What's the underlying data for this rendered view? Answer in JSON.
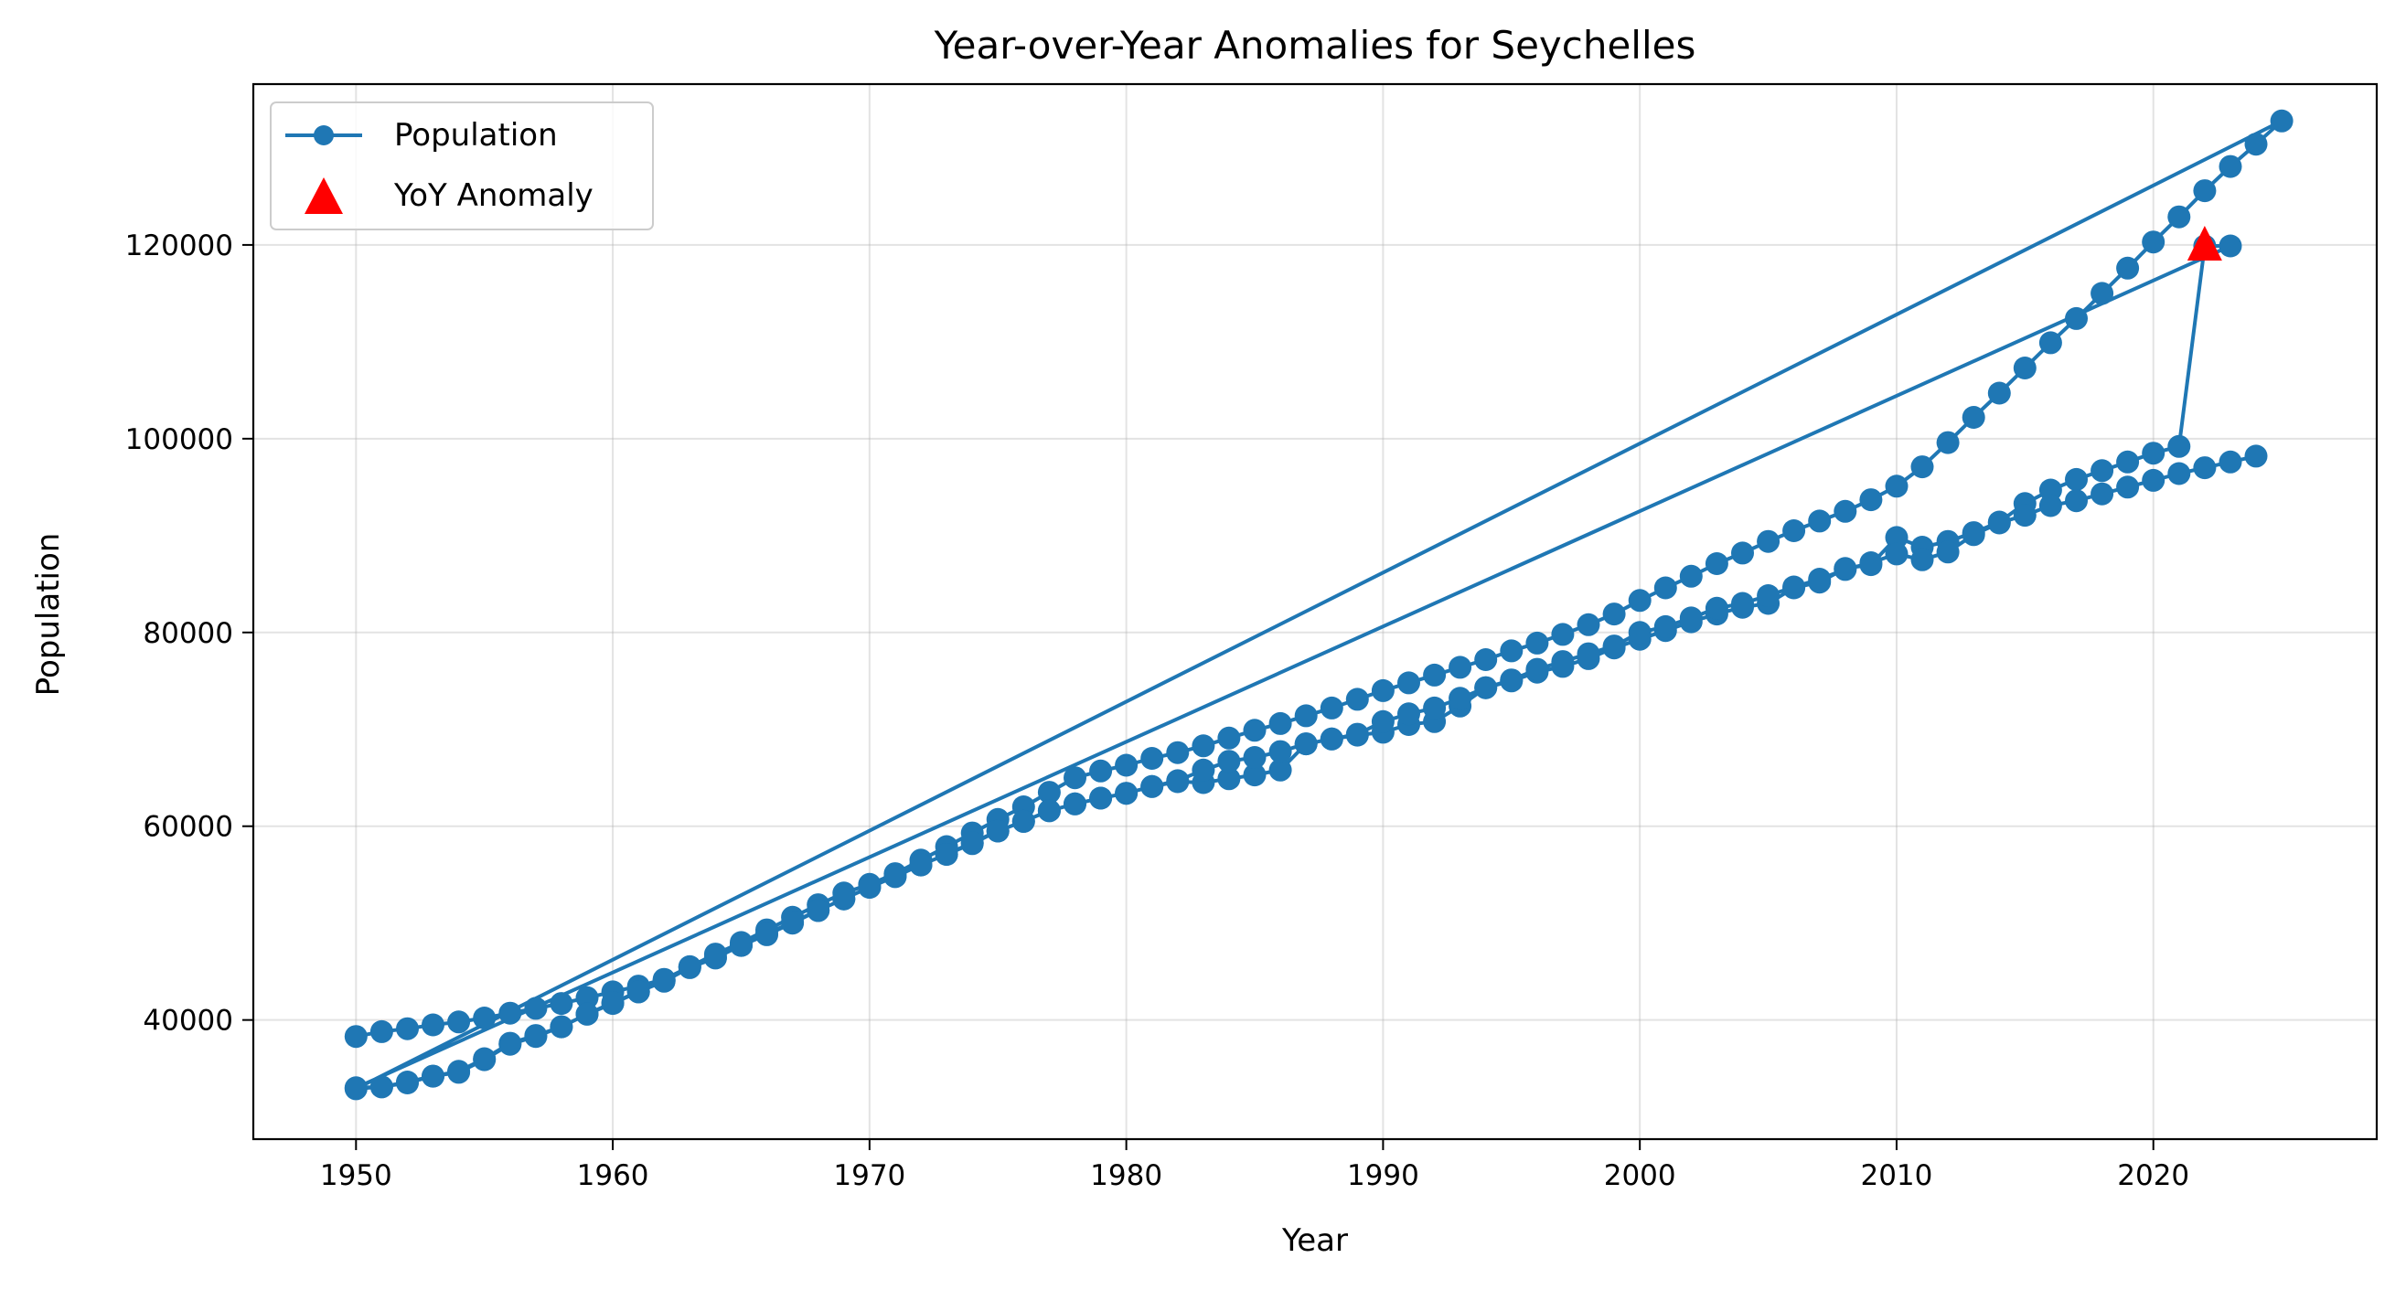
{
  "chart_data": {
    "type": "line",
    "title": "Year-over-Year Anomalies for Seychelles",
    "xlabel": "Year",
    "ylabel": "Population",
    "xlim": [
      1946,
      2028.7
    ],
    "ylim": [
      27700,
      136600
    ],
    "x_ticks": [
      1950,
      1960,
      1970,
      1980,
      1990,
      2000,
      2010,
      2020
    ],
    "y_ticks": [
      40000,
      60000,
      80000,
      100000,
      120000
    ],
    "grid": true,
    "legend_position": "top-left",
    "legend": [
      {
        "label": "Population",
        "marker": "circle-line"
      },
      {
        "label": "YoY Anomaly",
        "marker": "triangle"
      }
    ],
    "series_color": "#1f77b4",
    "anomaly_color": "#ff0000",
    "series": [
      {
        "name": "Population",
        "note_segments": "path drawn in order; each segment listed as [year, population]",
        "points": [
          [
            1950,
            38300
          ],
          [
            1951,
            38800
          ],
          [
            1952,
            39100
          ],
          [
            1953,
            39500
          ],
          [
            1954,
            39800
          ],
          [
            1955,
            40200
          ],
          [
            1956,
            40700
          ],
          [
            1957,
            41200
          ],
          [
            1958,
            41700
          ],
          [
            1959,
            42300
          ],
          [
            1960,
            42900
          ],
          [
            1961,
            43500
          ],
          [
            1962,
            44200
          ],
          [
            1963,
            45500
          ],
          [
            1964,
            46800
          ],
          [
            1965,
            48000
          ],
          [
            1966,
            49300
          ],
          [
            1967,
            50600
          ],
          [
            1968,
            51900
          ],
          [
            1969,
            53100
          ],
          [
            1970,
            54000
          ],
          [
            1971,
            55100
          ],
          [
            1972,
            56500
          ],
          [
            1973,
            57900
          ],
          [
            1974,
            59300
          ],
          [
            1975,
            60700
          ],
          [
            1976,
            62000
          ],
          [
            1977,
            63500
          ],
          [
            1978,
            65000
          ],
          [
            1979,
            65700
          ],
          [
            1980,
            66300
          ],
          [
            1981,
            67000
          ],
          [
            1982,
            67600
          ],
          [
            1983,
            68300
          ],
          [
            1984,
            69100
          ],
          [
            1985,
            69900
          ],
          [
            1986,
            70600
          ],
          [
            1987,
            71400
          ],
          [
            1988,
            72200
          ],
          [
            1989,
            73100
          ],
          [
            1990,
            74000
          ],
          [
            1991,
            74800
          ],
          [
            1992,
            75600
          ],
          [
            1993,
            76400
          ],
          [
            1994,
            77200
          ],
          [
            1995,
            78100
          ],
          [
            1996,
            78900
          ],
          [
            1997,
            79800
          ],
          [
            1998,
            80800
          ],
          [
            1999,
            81900
          ],
          [
            2000,
            83300
          ],
          [
            2001,
            84600
          ],
          [
            2002,
            85800
          ],
          [
            2003,
            87100
          ],
          [
            2004,
            88200
          ],
          [
            2005,
            89400
          ],
          [
            2006,
            90500
          ],
          [
            2007,
            91500
          ],
          [
            2008,
            92500
          ],
          [
            2009,
            93700
          ],
          [
            2010,
            95100
          ],
          [
            2011,
            97100
          ],
          [
            2012,
            99600
          ],
          [
            2013,
            102200
          ],
          [
            2014,
            104700
          ],
          [
            2015,
            107300
          ],
          [
            2016,
            109900
          ],
          [
            2017,
            112400
          ],
          [
            2018,
            115000
          ],
          [
            2019,
            117600
          ],
          [
            2020,
            120300
          ],
          [
            2021,
            122900
          ],
          [
            2022,
            125600
          ],
          [
            2023,
            128100
          ],
          [
            2024,
            130400
          ],
          [
            2025,
            132800
          ],
          [
            1950,
            32900
          ],
          [
            1951,
            33100
          ],
          [
            1952,
            33500
          ],
          [
            1953,
            34200
          ],
          [
            1954,
            34600
          ],
          [
            1955,
            35900
          ],
          [
            1956,
            37500
          ],
          [
            1957,
            38300
          ],
          [
            1958,
            39300
          ],
          [
            1959,
            40600
          ],
          [
            1960,
            41700
          ],
          [
            1961,
            42900
          ],
          [
            1962,
            44000
          ],
          [
            1963,
            45400
          ],
          [
            1964,
            46400
          ],
          [
            1965,
            47700
          ],
          [
            1966,
            48800
          ],
          [
            1967,
            50000
          ],
          [
            1968,
            51300
          ],
          [
            1969,
            52500
          ],
          [
            1970,
            53700
          ],
          [
            1971,
            54800
          ],
          [
            1972,
            56000
          ],
          [
            1973,
            57100
          ],
          [
            1974,
            58200
          ],
          [
            1975,
            59500
          ],
          [
            1976,
            60500
          ],
          [
            1977,
            61600
          ],
          [
            1978,
            62300
          ],
          [
            1979,
            62900
          ],
          [
            1980,
            63400
          ],
          [
            1981,
            64100
          ],
          [
            1982,
            64600
          ],
          [
            1983,
            64500
          ],
          [
            1984,
            64900
          ],
          [
            1985,
            65300
          ],
          [
            1986,
            65800
          ],
          [
            1987,
            68500
          ],
          [
            1988,
            69000
          ],
          [
            1989,
            69400
          ],
          [
            1990,
            69700
          ],
          [
            1991,
            70500
          ],
          [
            1992,
            70800
          ],
          [
            1993,
            72400
          ],
          [
            1994,
            74300
          ],
          [
            1995,
            75000
          ],
          [
            1996,
            75900
          ],
          [
            1997,
            76500
          ],
          [
            1998,
            77300
          ],
          [
            1999,
            78400
          ],
          [
            2000,
            79300
          ],
          [
            2001,
            80200
          ],
          [
            2002,
            81100
          ],
          [
            2003,
            81900
          ],
          [
            2004,
            82600
          ],
          [
            2005,
            83000
          ],
          [
            2006,
            84600
          ],
          [
            2007,
            85200
          ],
          [
            2008,
            86600
          ],
          [
            2009,
            87000
          ],
          [
            2010,
            89800
          ],
          [
            2011,
            88800
          ],
          [
            2012,
            89400
          ],
          [
            2013,
            90300
          ],
          [
            2014,
            91400
          ],
          [
            2015,
            93300
          ],
          [
            2016,
            94700
          ],
          [
            2017,
            95800
          ],
          [
            2018,
            96700
          ],
          [
            2019,
            97600
          ],
          [
            2020,
            98500
          ],
          [
            2021,
            99200
          ],
          [
            2022,
            119900
          ],
          [
            2023,
            119900
          ],
          [
            1950,
            33000
          ],
          [
            1951,
            33100
          ],
          [
            1952,
            33600
          ],
          [
            1953,
            34200
          ],
          [
            1954,
            34700
          ],
          [
            1955,
            36000
          ],
          [
            1956,
            37600
          ],
          [
            1957,
            38400
          ],
          [
            1958,
            39300
          ],
          [
            1959,
            40600
          ],
          [
            1960,
            41800
          ],
          [
            1961,
            42900
          ],
          [
            1962,
            44100
          ],
          [
            1963,
            45500
          ],
          [
            1964,
            46400
          ],
          [
            1965,
            47700
          ],
          [
            1966,
            48900
          ],
          [
            1967,
            50100
          ],
          [
            1968,
            51300
          ],
          [
            1969,
            52500
          ],
          [
            1970,
            53700
          ],
          [
            1971,
            54800
          ],
          [
            1972,
            56000
          ],
          [
            1973,
            57100
          ],
          [
            1974,
            58300
          ],
          [
            1975,
            59500
          ],
          [
            1976,
            60500
          ],
          [
            1977,
            61600
          ],
          [
            1978,
            62300
          ],
          [
            1979,
            62900
          ],
          [
            1980,
            63400
          ],
          [
            1981,
            64100
          ],
          [
            1982,
            64700
          ],
          [
            1983,
            65800
          ],
          [
            1984,
            66700
          ],
          [
            1985,
            67100
          ],
          [
            1986,
            67700
          ],
          [
            1987,
            68500
          ],
          [
            1988,
            69000
          ],
          [
            1989,
            69500
          ],
          [
            1990,
            70800
          ],
          [
            1991,
            71600
          ],
          [
            1992,
            72200
          ],
          [
            1993,
            73200
          ],
          [
            1994,
            74300
          ],
          [
            1995,
            75100
          ],
          [
            1996,
            76200
          ],
          [
            1997,
            77000
          ],
          [
            1998,
            77800
          ],
          [
            1999,
            78600
          ],
          [
            2000,
            80000
          ],
          [
            2001,
            80600
          ],
          [
            2002,
            81500
          ],
          [
            2003,
            82500
          ],
          [
            2004,
            83000
          ],
          [
            2005,
            83800
          ],
          [
            2006,
            84700
          ],
          [
            2007,
            85500
          ],
          [
            2008,
            86500
          ],
          [
            2009,
            87200
          ],
          [
            2010,
            88100
          ],
          [
            2011,
            87500
          ],
          [
            2012,
            88300
          ],
          [
            2013,
            90100
          ],
          [
            2014,
            91300
          ],
          [
            2015,
            92100
          ],
          [
            2016,
            93100
          ],
          [
            2017,
            93600
          ],
          [
            2018,
            94300
          ],
          [
            2019,
            95000
          ],
          [
            2020,
            95700
          ],
          [
            2021,
            96400
          ],
          [
            2022,
            97000
          ],
          [
            2023,
            97600
          ],
          [
            2024,
            98200
          ]
        ]
      }
    ],
    "anomalies": [
      {
        "x": 2022,
        "y": 119900
      }
    ]
  }
}
